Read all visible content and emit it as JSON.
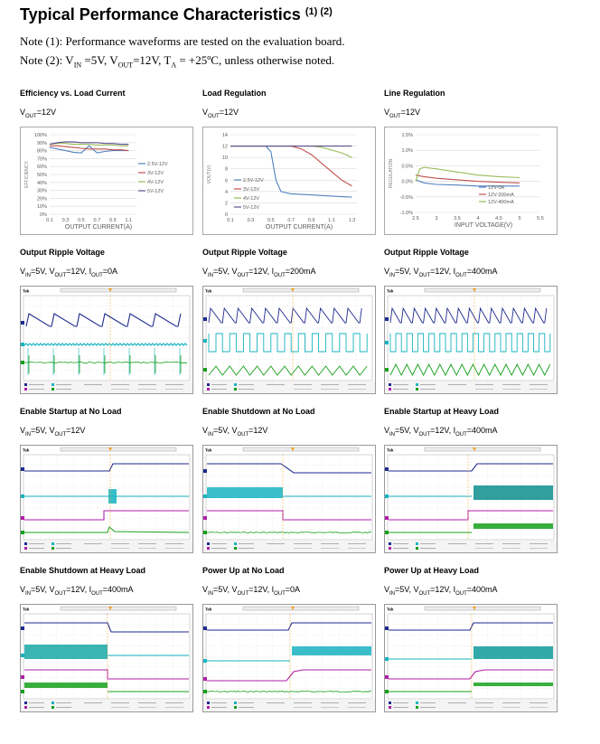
{
  "page": {
    "title": "Typical Performance Characteristics",
    "title_sup": "(1) (2)",
    "note1": "Note (1): Performance waveforms are tested on the evaluation board.",
    "note2_prefix": "Note (2): V",
    "note2_rest": "IN =5V, VOUT=12V, TA = +25ºC, unless otherwise noted."
  },
  "notes": {
    "n2_a": "Note (2): V",
    "n2_a_sub": "IN",
    "n2_b": " =5V, V",
    "n2_b_sub": "OUT",
    "n2_c": "=12V, T",
    "n2_c_sub": "A",
    "n2_d": " = +25ºC, unless otherwise noted."
  },
  "cells": [
    {
      "title": "Efficiency vs. Load Current",
      "cond": "VOUT=12V"
    },
    {
      "title": "Load Regulation",
      "cond": "VOUT=12V"
    },
    {
      "title": "Line Regulation",
      "cond": "VOUT=12V"
    },
    {
      "title": "Output Ripple Voltage",
      "cond": "VIN=5V, VOUT=12V, IOUT=0A"
    },
    {
      "title": "Output Ripple Voltage",
      "cond": "VIN=5V, VOUT=12V, IOUT=200mA"
    },
    {
      "title": "Output Ripple Voltage",
      "cond": "VIN=5V, VOUT=12V, IOUT=400mA"
    },
    {
      "title": "Enable Startup at No Load",
      "cond": "VIN=5V, VOUT=12V"
    },
    {
      "title": "Enable Shutdown at No Load",
      "cond": "VIN=5V, VOUT=12V"
    },
    {
      "title": "Enable Startup at Heavy Load",
      "cond": "VIN=5V, VOUT=12V, IOUT=400mA"
    },
    {
      "title": "Enable Shutdown at Heavy Load",
      "cond": "VIN=5V, VOUT=12V, IOUT=400mA"
    },
    {
      "title": "Power Up at No Load",
      "cond": "VIN=5V, VOUT=12V, IOUT=0A"
    },
    {
      "title": "Power Up at Heavy Load",
      "cond": "VIN=5V, VOUT=12V, IOUT=400mA"
    }
  ],
  "chart_data": [
    {
      "type": "line",
      "xlabel": "OUTPUT CURRENT(A)",
      "ylabel": "EFFICIENCY",
      "x_ticks": [
        "0.1",
        "0.3",
        "0.5",
        "0.7",
        "0.9",
        "1.1"
      ],
      "y_ticks": [
        "0%",
        "10%",
        "20%",
        "30%",
        "40%",
        "50%",
        "60%",
        "70%",
        "80%",
        "90%",
        "100%"
      ],
      "xlim": [
        0.1,
        1.2
      ],
      "ylim": [
        0,
        100
      ],
      "legend": "right",
      "series": [
        {
          "name": "2.5V-12V",
          "color": "#4f81bd",
          "x": [
            0.1,
            0.2,
            0.3,
            0.4,
            0.5,
            0.6,
            0.7,
            0.8,
            0.9,
            1.0,
            1.1
          ],
          "y": [
            84,
            82,
            80,
            78,
            77,
            86,
            77,
            79,
            80,
            80,
            80
          ]
        },
        {
          "name": "3V-12V",
          "color": "#c0504d",
          "x": [
            0.1,
            0.2,
            0.3,
            0.4,
            0.5,
            0.6,
            0.7,
            0.8,
            0.9,
            1.0,
            1.1
          ],
          "y": [
            86,
            86,
            85,
            84,
            83,
            82,
            82,
            82,
            81,
            81,
            80
          ]
        },
        {
          "name": "4V-12V",
          "color": "#9bbb59",
          "x": [
            0.1,
            0.2,
            0.3,
            0.4,
            0.5,
            0.6,
            0.7,
            0.8,
            0.9,
            1.0,
            1.1
          ],
          "y": [
            88,
            89,
            89,
            88,
            88,
            88,
            87,
            87,
            87,
            86,
            86
          ]
        },
        {
          "name": "5V-12V",
          "color": "#5b4f8f",
          "x": [
            0.1,
            0.2,
            0.3,
            0.4,
            0.5,
            0.6,
            0.7,
            0.8,
            0.9,
            1.0,
            1.1
          ],
          "y": [
            88,
            90,
            91,
            91,
            90,
            90,
            90,
            89,
            89,
            88,
            88
          ]
        }
      ]
    },
    {
      "type": "line",
      "xlabel": "OUTPUT CURRENT(A)",
      "ylabel": "VOUT(V)",
      "x_ticks": [
        "0.1",
        "0.3",
        "0.5",
        "0.7",
        "0.9",
        "1.1",
        "1.3"
      ],
      "y_ticks": [
        "0",
        "2",
        "4",
        "6",
        "8",
        "10",
        "12",
        "14"
      ],
      "xlim": [
        0.1,
        1.35
      ],
      "ylim": [
        0,
        14
      ],
      "legend": "left",
      "series": [
        {
          "name": "2.5V-12V",
          "color": "#4f81bd",
          "x": [
            0.1,
            0.3,
            0.45,
            0.5,
            0.55,
            0.6,
            0.7,
            0.9,
            1.1,
            1.3
          ],
          "y": [
            12,
            12,
            12,
            11,
            6,
            4,
            3.6,
            3.4,
            3.2,
            3
          ]
        },
        {
          "name": "3V-12V",
          "color": "#c0504d",
          "x": [
            0.1,
            0.3,
            0.5,
            0.7,
            0.8,
            0.9,
            1.0,
            1.1,
            1.2,
            1.3
          ],
          "y": [
            12,
            12,
            12,
            12,
            11.5,
            10.5,
            9,
            7.5,
            6,
            5
          ]
        },
        {
          "name": "4V-12V",
          "color": "#9bbb59",
          "x": [
            0.1,
            0.5,
            0.9,
            1.0,
            1.1,
            1.2,
            1.3
          ],
          "y": [
            12,
            12,
            12,
            11.8,
            11.3,
            10.8,
            10
          ]
        },
        {
          "name": "5V-12V",
          "color": "#5b4f8f",
          "x": [
            0.1,
            0.5,
            0.9,
            1.1,
            1.3
          ],
          "y": [
            12,
            12,
            12,
            12,
            12
          ]
        }
      ]
    },
    {
      "type": "line",
      "xlabel": "INPUT VOLTAGE(V)",
      "ylabel": "REGULATION",
      "x_ticks": [
        "2.5",
        "3",
        "3.5",
        "4",
        "4.5",
        "5",
        "5.5"
      ],
      "y_ticks": [
        "-1.0%",
        "-0.5%",
        "0.0%",
        "0.5%",
        "1.0%",
        "1.5%"
      ],
      "xlim": [
        2.5,
        5.5
      ],
      "ylim": [
        -1.0,
        1.5
      ],
      "legend": "bottom-right",
      "series": [
        {
          "name": "12V-0A",
          "color": "#4f81bd",
          "x": [
            2.5,
            2.7,
            3,
            3.5,
            4,
            4.5,
            5
          ],
          "y": [
            0.05,
            -0.05,
            -0.1,
            -0.12,
            -0.15,
            -0.15,
            -0.15
          ]
        },
        {
          "name": "12V-200mA",
          "color": "#c0504d",
          "x": [
            2.5,
            2.7,
            3,
            3.5,
            4,
            4.5,
            5
          ],
          "y": [
            0.2,
            0.15,
            0.1,
            0.05,
            0.0,
            -0.03,
            -0.05
          ]
        },
        {
          "name": "12V-400mA",
          "color": "#9bbb59",
          "x": [
            2.5,
            2.6,
            2.7,
            3,
            3.5,
            4,
            4.5,
            5
          ],
          "y": [
            0.0,
            0.4,
            0.45,
            0.4,
            0.3,
            0.2,
            0.15,
            0.12
          ]
        }
      ]
    }
  ]
}
